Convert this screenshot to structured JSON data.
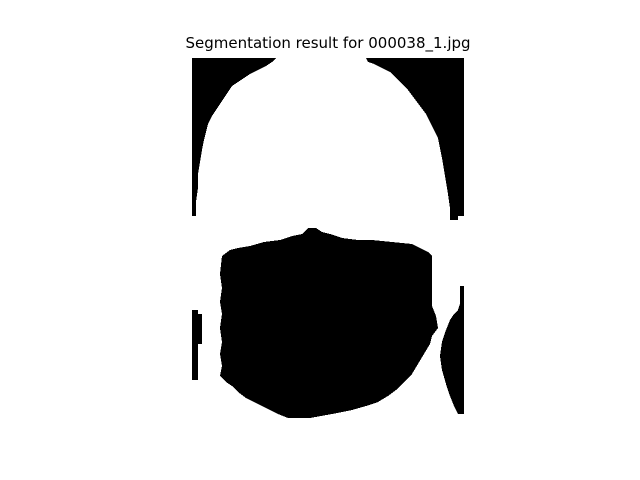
{
  "figure": {
    "title": "Segmentation result for 000038_1.jpg",
    "colors": {
      "background": "#ffffff",
      "mask_foreground": "#000000",
      "mask_background": "#ffffff"
    }
  }
}
